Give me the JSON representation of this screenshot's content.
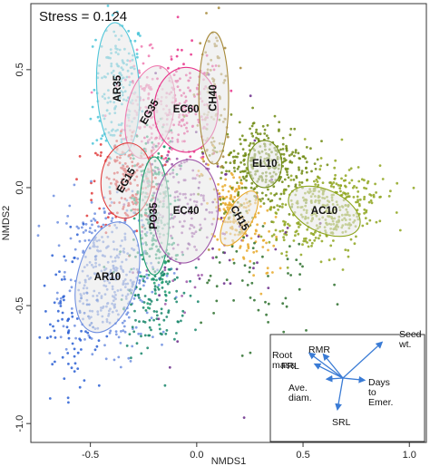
{
  "chart_data": {
    "type": "scatter",
    "title": "",
    "xlabel": "NMDS1",
    "ylabel": "NMDS2",
    "xlim": [
      -0.78,
      1.08
    ],
    "ylim": [
      -1.08,
      0.78
    ],
    "xticks": [
      -0.5,
      0.0,
      0.5,
      1.0
    ],
    "yticks": [
      -1.0,
      -0.5,
      0.0,
      0.5
    ],
    "xtick_labels": [
      "-0.5",
      "0.0",
      "0.5",
      "1.0"
    ],
    "ytick_labels": [
      "-1.0",
      "-0.5",
      "0.0",
      "0.5"
    ],
    "stress_text": "Stress = 0.124",
    "grid": false,
    "groups": [
      {
        "label": "AR35",
        "center": [
          -0.37,
          0.42
        ],
        "radii": [
          0.1,
          0.28
        ],
        "angle": 3,
        "color": "#4fc6d9",
        "n": 170,
        "spread": [
          0.07,
          0.2
        ]
      },
      {
        "label": "EG35",
        "center": [
          -0.22,
          0.32
        ],
        "radii": [
          0.11,
          0.2
        ],
        "angle": -12,
        "color": "#f07ab0",
        "n": 150,
        "spread": [
          0.09,
          0.15
        ]
      },
      {
        "label": "EC60",
        "center": [
          -0.05,
          0.33
        ],
        "radii": [
          0.15,
          0.18
        ],
        "angle": 0,
        "color": "#e8338a",
        "n": 150,
        "spread": [
          0.11,
          0.15
        ]
      },
      {
        "label": "CH40",
        "center": [
          0.08,
          0.38
        ],
        "radii": [
          0.07,
          0.28
        ],
        "angle": 0,
        "color": "#a78a3a",
        "n": 90,
        "spread": [
          0.05,
          0.2
        ]
      },
      {
        "label": "EG15",
        "center": [
          -0.33,
          0.03
        ],
        "radii": [
          0.12,
          0.16
        ],
        "angle": -5,
        "color": "#e03a3a",
        "n": 190,
        "spread": [
          0.1,
          0.14
        ]
      },
      {
        "label": "PO35",
        "center": [
          -0.2,
          -0.12
        ],
        "radii": [
          0.07,
          0.25
        ],
        "angle": 0,
        "color": "#1f9e6e",
        "n": 230,
        "spread": [
          0.06,
          0.22
        ]
      },
      {
        "label": "EC40",
        "center": [
          -0.05,
          -0.1
        ],
        "radii": [
          0.15,
          0.22
        ],
        "angle": -5,
        "color": "#9e57a8",
        "n": 130,
        "spread": [
          0.12,
          0.17
        ]
      },
      {
        "label": "CH15",
        "center": [
          0.2,
          -0.13
        ],
        "radii": [
          0.06,
          0.13
        ],
        "angle": -30,
        "color": "#e8a92a",
        "n": 190,
        "spread": [
          0.07,
          0.14
        ]
      },
      {
        "label": "AR10",
        "center": [
          -0.42,
          -0.38
        ],
        "radii": [
          0.14,
          0.24
        ],
        "angle": -15,
        "color": "#6f8fe0",
        "n": 360,
        "spread": [
          0.13,
          0.2
        ]
      },
      {
        "label": "EL10",
        "center": [
          0.32,
          0.1
        ],
        "radii": [
          0.08,
          0.1
        ],
        "angle": 0,
        "color": "#6e8a12",
        "n": 330,
        "spread": [
          0.14,
          0.12
        ]
      },
      {
        "label": "AC10",
        "center": [
          0.6,
          -0.1
        ],
        "radii": [
          0.18,
          0.09
        ],
        "angle": -25,
        "color": "#8fa620",
        "n": 380,
        "spread": [
          0.16,
          0.11
        ]
      },
      {
        "label": "",
        "center": [
          -0.58,
          -0.55
        ],
        "radii": [
          0,
          0
        ],
        "angle": 0,
        "color": "#2a5fd4",
        "n": 90,
        "spread": [
          0.09,
          0.22
        ]
      },
      {
        "label": "",
        "center": [
          -0.2,
          -0.45
        ],
        "radii": [
          0,
          0
        ],
        "angle": 0,
        "color": "#17866a",
        "n": 120,
        "spread": [
          0.1,
          0.16
        ]
      },
      {
        "label": "",
        "center": [
          0.25,
          -0.4
        ],
        "radii": [
          0,
          0
        ],
        "angle": 0,
        "color": "#2b6f2b",
        "n": 60,
        "spread": [
          0.2,
          0.2
        ]
      },
      {
        "label": "",
        "center": [
          0.1,
          -0.1
        ],
        "radii": [
          0,
          0
        ],
        "angle": 0,
        "color": "#6a2b8a",
        "n": 50,
        "spread": [
          0.25,
          0.35
        ]
      }
    ],
    "inset_vectors": [
      {
        "label": "Root\nmass",
        "end": [
          -0.62,
          0.46
        ]
      },
      {
        "label": "RMR",
        "end": [
          -0.36,
          0.44
        ]
      },
      {
        "label": "FRL",
        "end": [
          -0.52,
          0.26
        ]
      },
      {
        "label": "Ave.\ndiam.",
        "end": [
          -0.3,
          -0.02
        ]
      },
      {
        "label": "Seed\nwt.",
        "end": [
          0.72,
          0.66
        ]
      },
      {
        "label": "Days\nto\nEmer.",
        "end": [
          0.4,
          -0.04
        ]
      },
      {
        "label": "SRL",
        "end": [
          -0.1,
          -0.58
        ]
      }
    ]
  }
}
